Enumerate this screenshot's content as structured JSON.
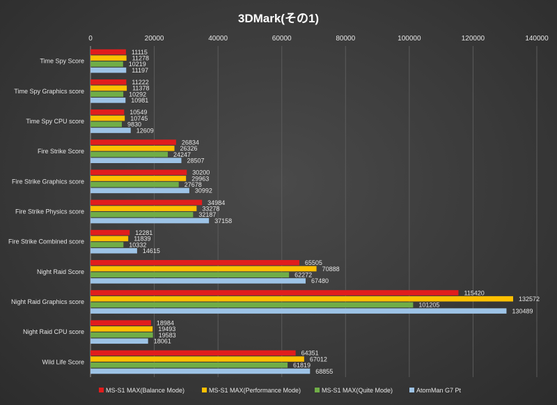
{
  "chart_data": {
    "type": "bar",
    "orientation": "horizontal",
    "title": "3DMark(その1)",
    "xlabel": "",
    "ylabel": "",
    "xlim": [
      0,
      140000
    ],
    "xticks": [
      "0",
      "20000",
      "40000",
      "60000",
      "80000",
      "100000",
      "120000",
      "140000"
    ],
    "grid": true,
    "legend_position": "bottom",
    "categories": [
      "Time Spy Score",
      "Time Spy Graphics score",
      "Time Spy CPU score",
      "Fire Strike Score",
      "Fire Strike Graphics score",
      "Fire Strike Physics score",
      "Fire Strike Combined score",
      "Night Raid Score",
      "Night Raid Graphics score",
      "Night Raid CPU score",
      "Wild Life Score"
    ],
    "series": [
      {
        "name": "MS-S1 MAX(Balance Mode)",
        "color": "#e11d1d",
        "values": [
          11115,
          11222,
          10549,
          26834,
          30200,
          34984,
          12281,
          65505,
          115420,
          18984,
          64351
        ]
      },
      {
        "name": "MS-S1 MAX(Performance Mode)",
        "color": "#ffc000",
        "values": [
          11278,
          11378,
          10745,
          26326,
          29963,
          33278,
          11839,
          70888,
          132572,
          19493,
          67012
        ]
      },
      {
        "name": "MS-S1 MAX(Quite Mode)",
        "color": "#70ad47",
        "values": [
          10219,
          10292,
          9830,
          24247,
          27678,
          32187,
          10332,
          62272,
          101205,
          19583,
          61819
        ]
      },
      {
        "name": "AtomMan G7 Pt",
        "color": "#9dc3e6",
        "values": [
          11197,
          10981,
          12609,
          28507,
          30992,
          37158,
          14615,
          67480,
          130489,
          18061,
          68855
        ]
      }
    ]
  }
}
